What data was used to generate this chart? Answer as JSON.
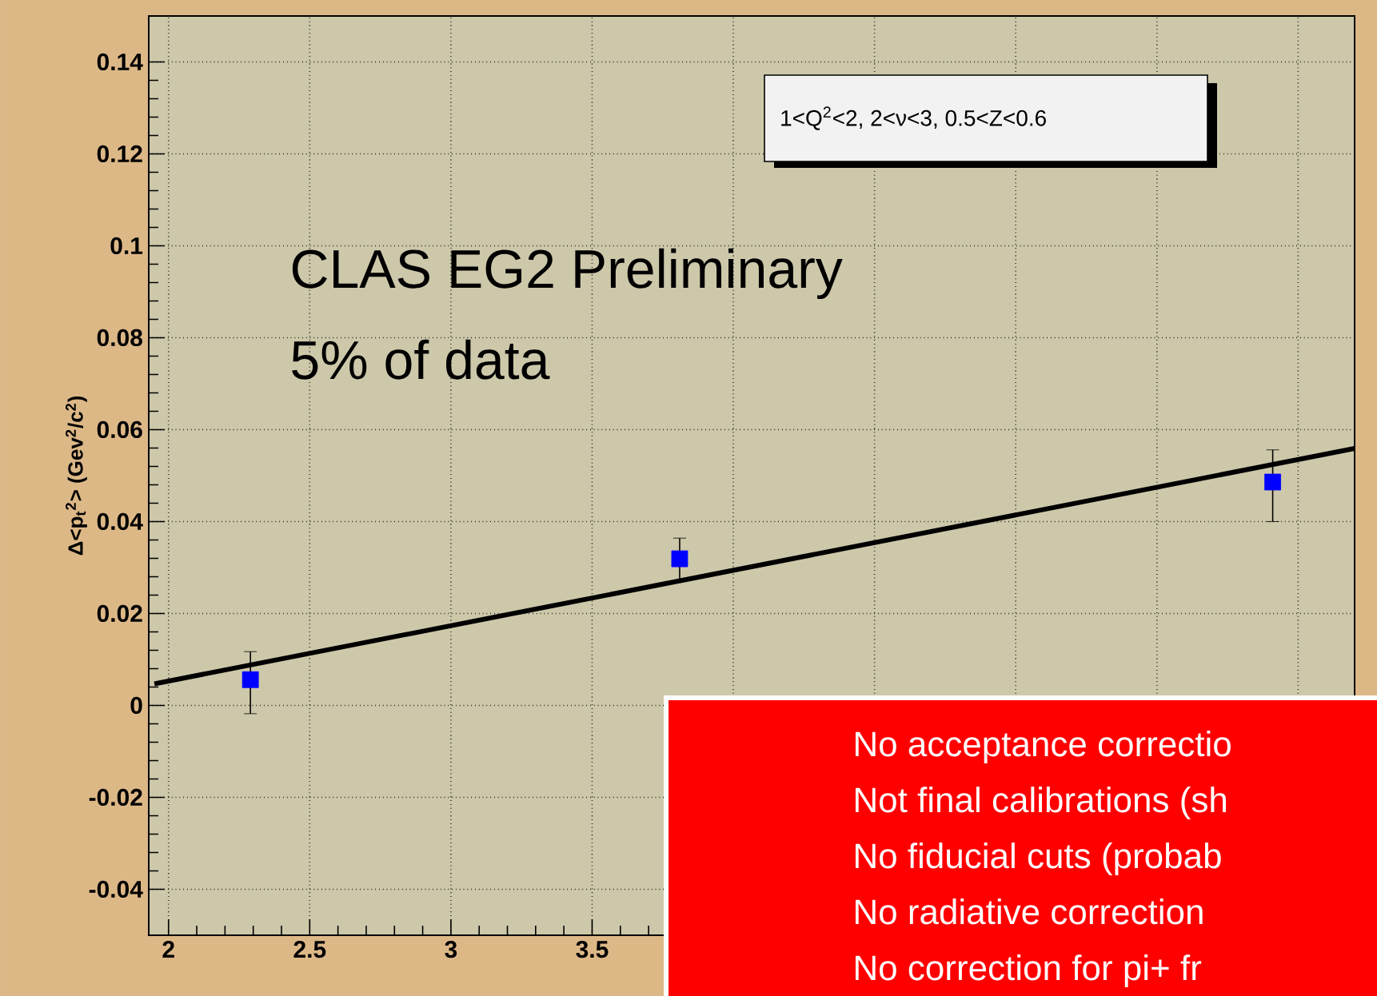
{
  "chart_data": {
    "type": "scatter",
    "ylabel": "Δ<p$_{t}$$^{2}$> (Gev$^{2}$/c$^{2}$)",
    "series": [
      {
        "color": "#0000ff",
        "marker": "square",
        "x": [
          2.29,
          3.81,
          5.91
        ],
        "values": [
          0.0056,
          0.0319,
          0.0486
        ],
        "errors": [
          [
            -0.0018,
            0.0117
          ],
          [
            0.027,
            0.0364
          ],
          [
            0.04,
            0.0556
          ]
        ]
      },
      {
        "type": "line",
        "color": "#000000",
        "marker": "none",
        "line_style": "solid",
        "x": [
          1.95,
          6.2
        ],
        "values": [
          0.0047,
          0.0559
        ]
      }
    ],
    "xlim": [
      1.93,
      6.2
    ],
    "ylim": [
      -0.05,
      0.15
    ],
    "xticks": [
      2,
      2.5,
      3,
      3.5,
      {
        "value": 4,
        "label": null
      },
      {
        "value": 4.5,
        "label": null
      },
      {
        "value": 5,
        "label": null
      },
      {
        "value": 5.5,
        "label": null
      },
      {
        "value": 6,
        "label": null
      }
    ],
    "yticks": [
      -0.04,
      -0.02,
      0,
      0.02,
      0.04,
      0.06,
      0.08,
      0.1,
      0.12,
      0.14
    ],
    "grid": true,
    "annotations": [
      "1<Q$^{2}$<2, 2<ν<3, 0.5<Z<0.6",
      "CLAS EG2 Preliminary",
      "5% of data",
      "No acceptance correctio",
      "Not final calibrations (sh",
      "No fiducial cuts (probab",
      "No radiative correction",
      "No correction for pi+ fr"
    ]
  }
}
